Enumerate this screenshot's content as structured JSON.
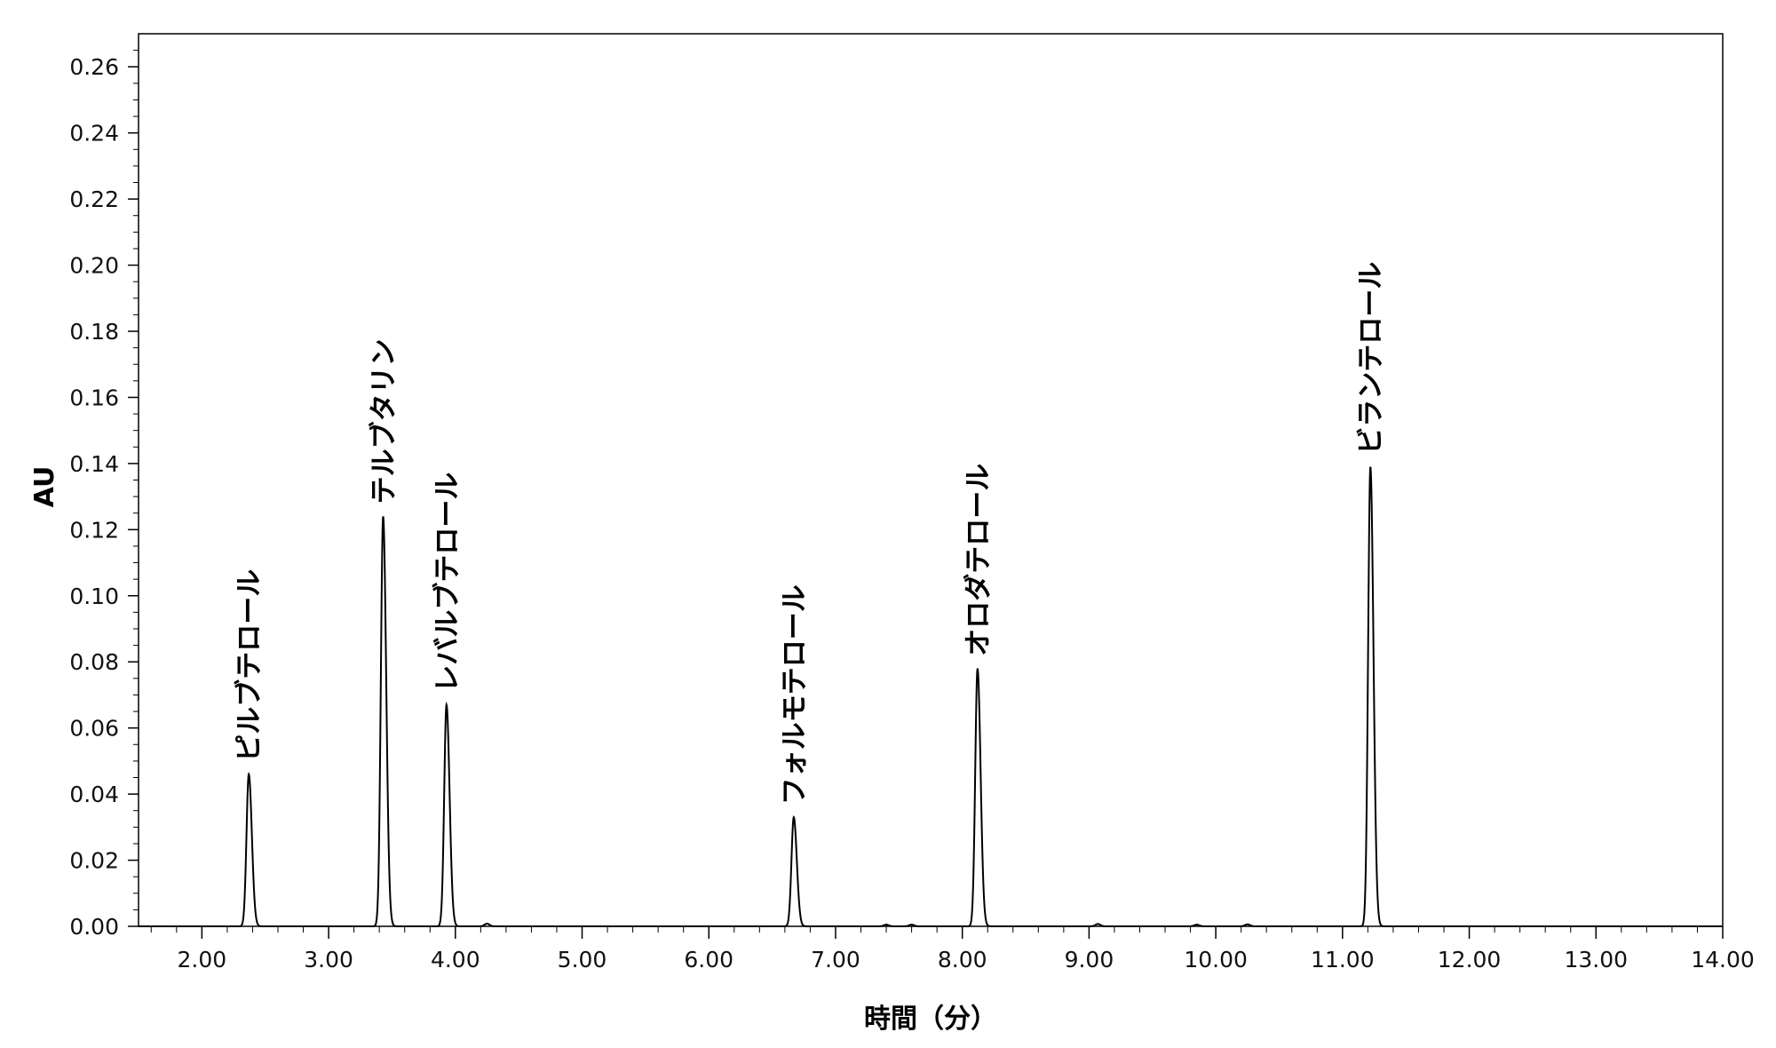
{
  "chart_data": {
    "type": "line",
    "title": "",
    "xlabel": "時間（分）",
    "ylabel": "AU",
    "xlim": [
      1.5,
      14.0
    ],
    "ylim": [
      0.0,
      0.27
    ],
    "grid": false,
    "line_color": "#000000",
    "x_ticks": [
      "2.00",
      "3.00",
      "4.00",
      "5.00",
      "6.00",
      "7.00",
      "8.00",
      "9.00",
      "10.00",
      "11.00",
      "12.00",
      "13.00",
      "14.00"
    ],
    "y_ticks": [
      "0.00",
      "0.02",
      "0.04",
      "0.06",
      "0.08",
      "0.10",
      "0.12",
      "0.14",
      "0.16",
      "0.18",
      "0.20",
      "0.22",
      "0.24",
      "0.26"
    ],
    "peaks": [
      {
        "label": "ピルブテロール",
        "rt": 2.37,
        "height": 0.046
      },
      {
        "label": "テルブタリン",
        "rt": 3.43,
        "height": 0.124
      },
      {
        "label": "レバルブテロール",
        "rt": 3.93,
        "height": 0.067
      },
      {
        "label": "フォルモテロール",
        "rt": 6.67,
        "height": 0.033
      },
      {
        "label": "オロダテロール",
        "rt": 8.12,
        "height": 0.078
      },
      {
        "label": "ビランテロール",
        "rt": 11.22,
        "height": 0.139
      }
    ],
    "minor_bumps": [
      {
        "rt": 4.25,
        "height": 0.0008
      },
      {
        "rt": 7.4,
        "height": 0.0005
      },
      {
        "rt": 7.6,
        "height": 0.0005
      },
      {
        "rt": 9.07,
        "height": 0.0007
      },
      {
        "rt": 9.85,
        "height": 0.0005
      },
      {
        "rt": 10.25,
        "height": 0.0006
      }
    ]
  }
}
